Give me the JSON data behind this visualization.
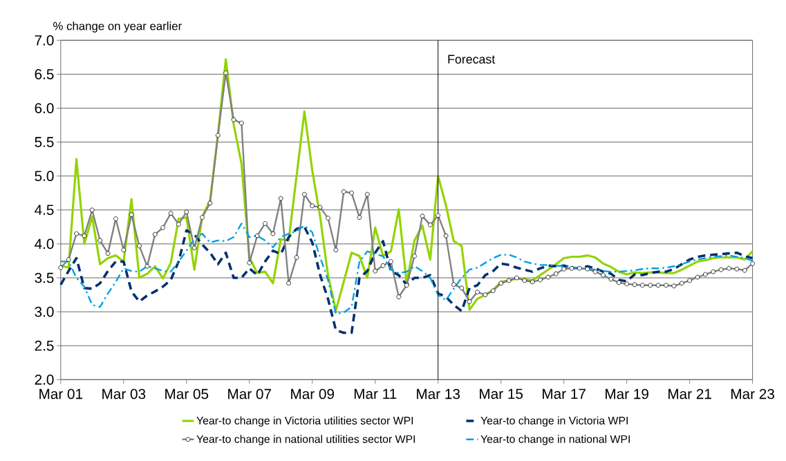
{
  "chart_data": {
    "type": "line",
    "ylabel": "% change on year earlier",
    "x": [
      "2001-03",
      "2001-06",
      "2001-09",
      "2001-12",
      "2002-03",
      "2002-06",
      "2002-09",
      "2002-12",
      "2003-03",
      "2003-06",
      "2003-09",
      "2003-12",
      "2004-03",
      "2004-06",
      "2004-09",
      "2004-12",
      "2005-03",
      "2005-06",
      "2005-09",
      "2005-12",
      "2006-03",
      "2006-06",
      "2006-09",
      "2006-12",
      "2007-03",
      "2007-06",
      "2007-09",
      "2007-12",
      "2008-03",
      "2008-06",
      "2008-09",
      "2008-12",
      "2009-03",
      "2009-06",
      "2009-09",
      "2009-12",
      "2010-03",
      "2010-06",
      "2010-09",
      "2010-12",
      "2011-03",
      "2011-06",
      "2011-09",
      "2011-12",
      "2012-03",
      "2012-06",
      "2012-09",
      "2012-12",
      "2013-03",
      "2013-06",
      "2013-09",
      "2013-12",
      "2014-03",
      "2014-06",
      "2014-09",
      "2014-12",
      "2015-03",
      "2015-06",
      "2015-09",
      "2015-12",
      "2016-03",
      "2016-06",
      "2016-09",
      "2016-12",
      "2017-03",
      "2017-06",
      "2017-09",
      "2017-12",
      "2018-03",
      "2018-06",
      "2018-09",
      "2018-12",
      "2019-03",
      "2019-06",
      "2019-09",
      "2019-12",
      "2020-03",
      "2020-06",
      "2020-09",
      "2020-12",
      "2021-03",
      "2021-06",
      "2021-09",
      "2021-12",
      "2022-03",
      "2022-06",
      "2022-09",
      "2022-12",
      "2023-03"
    ],
    "series": [
      {
        "name": "Year-to change in Victoria utilities sector WPI",
        "color": "#92d400",
        "line_style": "solid",
        "marker": "none",
        "values": [
          3.68,
          3.65,
          5.25,
          4.0,
          4.4,
          3.7,
          3.79,
          3.83,
          3.74,
          4.66,
          3.5,
          3.56,
          3.67,
          3.49,
          3.72,
          4.37,
          4.39,
          3.62,
          4.4,
          4.64,
          5.61,
          6.72,
          5.76,
          5.18,
          3.8,
          3.57,
          3.59,
          3.42,
          4.07,
          4.05,
          5.0,
          5.95,
          5.08,
          4.4,
          3.54,
          3.02,
          3.44,
          3.87,
          3.82,
          3.5,
          4.24,
          3.82,
          3.89,
          4.51,
          3.42,
          4.05,
          4.27,
          3.77,
          5.0,
          4.57,
          4.04,
          3.97,
          3.03,
          3.19,
          3.25,
          3.32,
          3.44,
          3.46,
          3.49,
          3.48,
          3.46,
          3.54,
          3.62,
          3.7,
          3.79,
          3.81,
          3.81,
          3.83,
          3.8,
          3.71,
          3.66,
          3.59,
          3.55,
          3.58,
          3.57,
          3.58,
          3.58,
          3.57,
          3.57,
          3.62,
          3.68,
          3.74,
          3.76,
          3.79,
          3.8,
          3.8,
          3.8,
          3.77,
          3.89
        ]
      },
      {
        "name": "Year-to change in Victoria WPI",
        "color": "#002f6c",
        "line_style": "dashed",
        "marker": "none",
        "values": [
          3.4,
          3.6,
          3.79,
          3.35,
          3.34,
          3.42,
          3.6,
          3.74,
          3.74,
          3.3,
          3.15,
          3.24,
          3.3,
          3.37,
          3.47,
          3.74,
          4.2,
          4.14,
          3.99,
          3.87,
          3.7,
          3.87,
          3.5,
          3.5,
          3.64,
          3.54,
          3.74,
          3.9,
          3.85,
          4.1,
          4.22,
          4.25,
          4.02,
          3.54,
          3.19,
          2.73,
          2.69,
          2.69,
          3.5,
          3.6,
          3.87,
          4.04,
          3.6,
          3.54,
          3.4,
          3.5,
          3.5,
          3.54,
          3.27,
          3.22,
          3.1,
          3.01,
          3.35,
          3.39,
          3.54,
          3.6,
          3.71,
          3.69,
          3.65,
          3.62,
          3.59,
          3.64,
          3.68,
          3.67,
          3.68,
          3.65,
          3.64,
          3.67,
          3.64,
          3.59,
          3.56,
          3.47,
          3.45,
          3.55,
          3.54,
          3.57,
          3.59,
          3.59,
          3.63,
          3.7,
          3.77,
          3.81,
          3.83,
          3.84,
          3.85,
          3.86,
          3.87,
          3.82,
          3.79
        ]
      },
      {
        "name": "Year-to change in national utilities sector WPI",
        "color": "#808080",
        "line_style": "solid",
        "marker": "circle",
        "values": [
          3.65,
          3.77,
          4.15,
          4.12,
          4.5,
          4.05,
          3.86,
          4.37,
          3.91,
          4.43,
          3.97,
          3.67,
          4.14,
          4.24,
          4.45,
          4.29,
          4.47,
          3.94,
          4.39,
          4.6,
          5.6,
          6.52,
          5.83,
          5.78,
          3.72,
          4.12,
          4.3,
          4.15,
          4.67,
          3.42,
          3.8,
          4.73,
          4.56,
          4.54,
          4.38,
          3.91,
          4.77,
          4.75,
          4.39,
          4.73,
          3.6,
          3.68,
          3.74,
          3.22,
          3.39,
          3.82,
          4.41,
          4.28,
          4.42,
          4.12,
          3.4,
          3.35,
          3.15,
          3.29,
          3.25,
          3.31,
          3.42,
          3.46,
          3.5,
          3.46,
          3.44,
          3.47,
          3.51,
          3.56,
          3.63,
          3.64,
          3.64,
          3.63,
          3.59,
          3.54,
          3.48,
          3.43,
          3.41,
          3.4,
          3.39,
          3.39,
          3.39,
          3.39,
          3.38,
          3.42,
          3.46,
          3.51,
          3.55,
          3.59,
          3.62,
          3.64,
          3.63,
          3.61,
          3.71
        ]
      },
      {
        "name": "Year-to change in national WPI",
        "color": "#00a0e0",
        "line_style": "dashdot",
        "marker": "none",
        "values": [
          3.74,
          3.74,
          3.5,
          3.37,
          3.1,
          3.07,
          3.27,
          3.44,
          3.64,
          3.6,
          3.59,
          3.67,
          3.64,
          3.6,
          3.59,
          3.74,
          3.9,
          4.07,
          4.15,
          4.02,
          4.05,
          4.04,
          4.1,
          4.3,
          4.1,
          4.12,
          4.05,
          3.95,
          4.1,
          4.15,
          4.19,
          4.27,
          4.17,
          3.8,
          3.47,
          2.97,
          2.99,
          3.07,
          3.74,
          3.89,
          3.85,
          3.82,
          3.62,
          3.57,
          3.59,
          3.67,
          3.6,
          3.5,
          3.25,
          3.17,
          3.34,
          3.5,
          3.62,
          3.65,
          3.72,
          3.79,
          3.84,
          3.84,
          3.8,
          3.74,
          3.71,
          3.69,
          3.69,
          3.68,
          3.67,
          3.66,
          3.64,
          3.63,
          3.62,
          3.6,
          3.59,
          3.59,
          3.6,
          3.61,
          3.63,
          3.64,
          3.64,
          3.65,
          3.67,
          3.7,
          3.74,
          3.77,
          3.79,
          3.81,
          3.82,
          3.83,
          3.81,
          3.79,
          3.75
        ]
      }
    ],
    "xlim": [
      "2001-03",
      "2023-03"
    ],
    "xticks": [
      {
        "value": "2001-03",
        "label": "Mar 01"
      },
      {
        "value": "2003-03",
        "label": "Mar 03"
      },
      {
        "value": "2005-03",
        "label": "Mar 05"
      },
      {
        "value": "2007-03",
        "label": "Mar 07"
      },
      {
        "value": "2009-03",
        "label": "Mar 09"
      },
      {
        "value": "2011-03",
        "label": "Mar 11"
      },
      {
        "value": "2013-03",
        "label": "Mar 13"
      },
      {
        "value": "2015-03",
        "label": "Mar 15"
      },
      {
        "value": "2017-03",
        "label": "Mar 17"
      },
      {
        "value": "2019-03",
        "label": "Mar 19"
      },
      {
        "value": "2021-03",
        "label": "Mar 21"
      },
      {
        "value": "2023-03",
        "label": "Mar 23"
      }
    ],
    "ylim": [
      2,
      7
    ],
    "yticks": [
      {
        "value": 2,
        "label": "2.0"
      },
      {
        "value": 2.5,
        "label": "2.5"
      },
      {
        "value": 3,
        "label": "3.0"
      },
      {
        "value": 3.5,
        "label": "3.5"
      },
      {
        "value": 4,
        "label": "4.0"
      },
      {
        "value": 4.5,
        "label": "4.5"
      },
      {
        "value": 5,
        "label": "5.0"
      },
      {
        "value": 5.5,
        "label": "5.5"
      },
      {
        "value": 6,
        "label": "6.0"
      },
      {
        "value": 6.5,
        "label": "6.5"
      },
      {
        "value": 7,
        "label": "7.0"
      }
    ],
    "ref_lines": [
      {
        "axis": "x",
        "value": "2013-03",
        "label": "Forecast",
        "color": "#000000"
      }
    ],
    "grid": "y",
    "legend": "bottom"
  }
}
